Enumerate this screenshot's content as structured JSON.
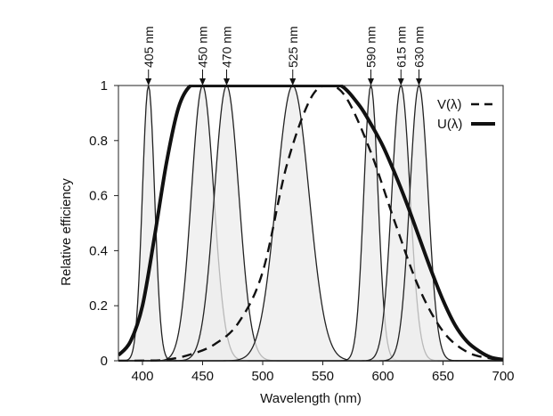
{
  "chart_data": {
    "type": "line",
    "title": "",
    "xlabel": "Wavelength (nm)",
    "ylabel": "Relative efficiency",
    "xlim": [
      380,
      700
    ],
    "ylim": [
      0,
      1
    ],
    "x_ticks": [
      400,
      450,
      500,
      550,
      600,
      650,
      700
    ],
    "y_ticks": [
      0,
      0.2,
      0.4,
      0.6,
      0.8,
      1
    ],
    "y_tick_labels": [
      "0",
      "0.2",
      "0.4",
      "0.6",
      "0.8",
      "1"
    ],
    "grid": false,
    "legend_position": "top-right",
    "led_peaks": [
      {
        "label": "405 nm",
        "peak": 405,
        "fwhm": 12
      },
      {
        "label": "450 nm",
        "peak": 450,
        "fwhm": 22
      },
      {
        "label": "470 nm",
        "peak": 470,
        "fwhm": 24
      },
      {
        "label": "525 nm",
        "peak": 525,
        "fwhm": 32
      },
      {
        "label": "590 nm",
        "peak": 590,
        "fwhm": 14
      },
      {
        "label": "615 nm",
        "peak": 615,
        "fwhm": 18
      },
      {
        "label": "630 nm",
        "peak": 630,
        "fwhm": 18
      }
    ],
    "series": [
      {
        "name": "V(λ)",
        "style": "dashed",
        "x": [
          380,
          400,
          420,
          440,
          460,
          480,
          500,
          520,
          540,
          555,
          570,
          590,
          610,
          630,
          650,
          670,
          690,
          700
        ],
        "values": [
          0.0,
          0.0004,
          0.004,
          0.023,
          0.06,
          0.139,
          0.323,
          0.71,
          0.954,
          1.0,
          0.952,
          0.757,
          0.503,
          0.265,
          0.107,
          0.032,
          0.008,
          0.004
        ]
      },
      {
        "name": "U(λ)",
        "style": "bold",
        "x": [
          380,
          390,
          400,
          410,
          420,
          430,
          440,
          450,
          500,
          550,
          565,
          580,
          590,
          600,
          610,
          620,
          630,
          640,
          650,
          660,
          670,
          680,
          690,
          700
        ],
        "values": [
          0.02,
          0.07,
          0.2,
          0.45,
          0.72,
          0.92,
          1.0,
          1.0,
          1.0,
          1.0,
          1.0,
          0.93,
          0.86,
          0.78,
          0.68,
          0.57,
          0.45,
          0.33,
          0.22,
          0.13,
          0.07,
          0.035,
          0.012,
          0.004
        ]
      }
    ]
  },
  "colors": {
    "plot_background": "#ececec",
    "line": "#111111",
    "led_curve": "#222222",
    "led_fill": "#ececec"
  }
}
